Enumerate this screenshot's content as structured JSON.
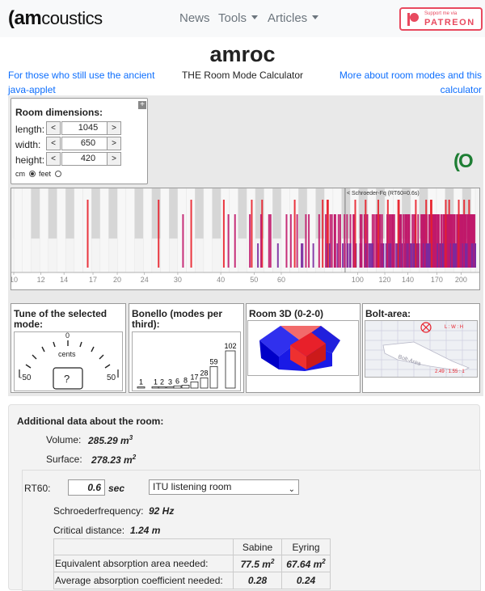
{
  "nav": {
    "logo": "amcoustics",
    "logo_mark": "(am",
    "logo_rest": "coustics",
    "items": [
      {
        "label": "News"
      },
      {
        "label": "Tools"
      },
      {
        "label": "Articles"
      }
    ],
    "patreon_top": "Support me via",
    "patreon_label": "PATREON"
  },
  "page": {
    "title": "amroc",
    "subtitle": "THE Room Mode Calculator",
    "link_left": "For those who still use the ancient java-applet",
    "link_right": "More about room modes and this calculator"
  },
  "dims": {
    "title": "Room dimensions:",
    "plus": "+",
    "length_label": "length:",
    "width_label": "width:",
    "height_label": "height:",
    "length": "1045",
    "width": "650",
    "height": "420",
    "dec": "<",
    "inc": ">",
    "unit_cm": "cm",
    "unit_feet": "feet",
    "selected_unit": "cm"
  },
  "loading_glyph": "(O",
  "spectrum": {
    "schroeder_label": "< Schroeder-Fq (RT60=0.6s)",
    "ticks": [
      {
        "v": 10,
        "label": "10"
      },
      {
        "v": 12,
        "label": "12"
      },
      {
        "v": 14,
        "label": "14"
      },
      {
        "v": 17,
        "label": "17"
      },
      {
        "v": 20,
        "label": "20"
      },
      {
        "v": 24,
        "label": "24"
      },
      {
        "v": 30,
        "label": "30"
      },
      {
        "v": 40,
        "label": "40"
      },
      {
        "v": 50,
        "label": "50"
      },
      {
        "v": 60,
        "label": "60"
      },
      {
        "v": 100,
        "label": "100"
      },
      {
        "v": 120,
        "label": "120"
      },
      {
        "v": 140,
        "label": "140"
      },
      {
        "v": 170,
        "label": "170"
      },
      {
        "v": 200,
        "label": "200"
      }
    ],
    "colors": {
      "axial": "#e8202a",
      "tangential": "#c0186a",
      "oblique": "#7a2a9e"
    }
  },
  "tune": {
    "title": "Tune of the selected mode:",
    "zero": "0",
    "unit": "cents",
    "min": "-50",
    "max": "50",
    "value": "?"
  },
  "bonello": {
    "title": "Bonello (modes per third):",
    "labels": [
      "1",
      "1",
      "2",
      "3",
      "6",
      "8",
      "17",
      "28",
      "59",
      "102"
    ]
  },
  "room3d": {
    "title": "Room 3D (0-2-0)"
  },
  "bolt": {
    "title": "Bolt-area:",
    "axes_label": "L : W : H",
    "ratio": "2.49 : 1.55 : 1"
  },
  "additional": {
    "title": "Additional data about the room:",
    "volume_label": "Volume:",
    "volume_value": "285.29 m",
    "volume_exp": "3",
    "surface_label": "Surface:",
    "surface_value": "278.23 m",
    "surface_exp": "2",
    "rt60_label": "RT60:",
    "rt60_value": "0.6",
    "rt60_unit": "sec",
    "room_type": "ITU listening room",
    "schroeder_label": "Schroederfrequency:",
    "schroeder_value": "92 Hz",
    "critical_label": "Critical distance:",
    "critical_value": "1.24 m",
    "table": {
      "headers": [
        "",
        "Sabine",
        "Eyring"
      ],
      "rows": [
        {
          "label": "Equivalent absorption area needed:",
          "sabine": "77.5 m",
          "sabine_exp": "2",
          "eyring": "67.64 m",
          "eyring_exp": "2"
        },
        {
          "label": "Average absorption coefficient needed:",
          "sabine": "0.28",
          "sabine_exp": "",
          "eyring": "0.24",
          "eyring_exp": ""
        }
      ]
    }
  }
}
